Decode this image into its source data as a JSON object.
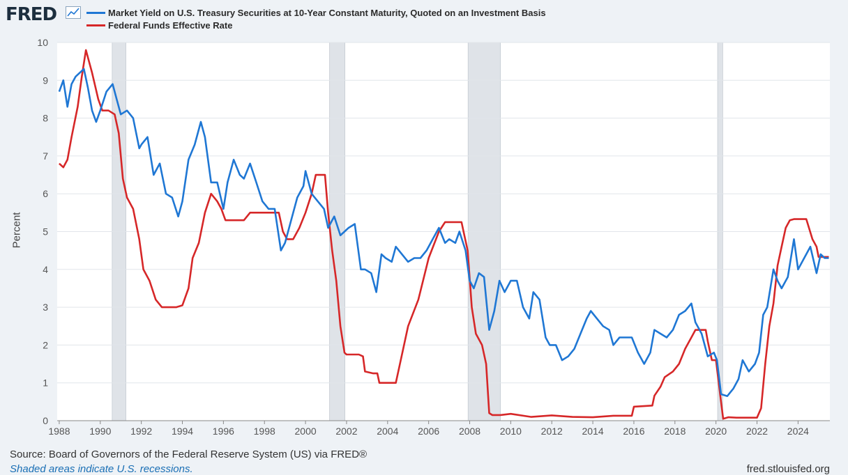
{
  "header": {
    "logo_text": "FRED",
    "series": [
      {
        "label": "Market Yield on U.S. Treasury Securities at 10-Year Constant Maturity, Quoted on an Investment Basis",
        "color": "#1f77d4"
      },
      {
        "label": "Federal Funds Effective Rate",
        "color": "#d62728"
      }
    ]
  },
  "footer": {
    "source": "Source: Board of Governors of the Federal Reserve System (US) via FRED®",
    "recession_note": "Shaded areas indicate U.S. recessions.",
    "site": "fred.stlouisfed.org"
  },
  "chart_data": {
    "type": "line",
    "title": "",
    "xlabel": "",
    "ylabel": "Percent",
    "xlim": [
      1987.9,
      2025.55
    ],
    "ylim": [
      0,
      10
    ],
    "y_ticks": [
      0,
      1,
      2,
      3,
      4,
      5,
      6,
      7,
      8,
      9,
      10
    ],
    "x_ticks": [
      1988,
      1990,
      1992,
      1994,
      1996,
      1998,
      2000,
      2002,
      2004,
      2006,
      2008,
      2010,
      2012,
      2014,
      2016,
      2018,
      2020,
      2022,
      2024
    ],
    "grid": true,
    "legend": "top-left",
    "recessions": [
      [
        1990.58,
        1991.25
      ],
      [
        2001.17,
        2001.92
      ],
      [
        2007.92,
        2009.5
      ],
      [
        2020.08,
        2020.33
      ]
    ],
    "series": [
      {
        "name": "Market Yield on U.S. Treasury Securities at 10-Year Constant Maturity, Quoted on an Investment Basis",
        "color": "#1f77d4",
        "x": [
          1988.0,
          1988.2,
          1988.4,
          1988.6,
          1988.8,
          1989.0,
          1989.2,
          1989.4,
          1989.6,
          1989.8,
          1990.0,
          1990.3,
          1990.6,
          1990.8,
          1991.0,
          1991.3,
          1991.6,
          1991.9,
          1992.0,
          1992.3,
          1992.6,
          1992.9,
          1993.2,
          1993.5,
          1993.8,
          1994.0,
          1994.3,
          1994.6,
          1994.9,
          1995.1,
          1995.4,
          1995.7,
          1996.0,
          1996.2,
          1996.5,
          1996.8,
          1997.0,
          1997.3,
          1997.6,
          1997.9,
          1998.2,
          1998.5,
          1998.8,
          1999.0,
          1999.3,
          1999.6,
          1999.9,
          2000.0,
          2000.3,
          2000.6,
          2000.9,
          2001.1,
          2001.4,
          2001.7,
          2001.9,
          2002.1,
          2002.4,
          2002.7,
          2002.9,
          2003.2,
          2003.45,
          2003.7,
          2003.9,
          2004.2,
          2004.4,
          2004.7,
          2005.0,
          2005.3,
          2005.6,
          2005.9,
          2006.2,
          2006.5,
          2006.8,
          2007.0,
          2007.3,
          2007.5,
          2007.8,
          2008.0,
          2008.2,
          2008.45,
          2008.7,
          2008.95,
          2009.2,
          2009.45,
          2009.7,
          2010.0,
          2010.3,
          2010.6,
          2010.9,
          2011.1,
          2011.4,
          2011.7,
          2011.9,
          2012.2,
          2012.5,
          2012.8,
          2013.1,
          2013.4,
          2013.7,
          2013.9,
          2014.2,
          2014.5,
          2014.8,
          2015.0,
          2015.3,
          2015.6,
          2015.9,
          2016.2,
          2016.5,
          2016.8,
          2017.0,
          2017.3,
          2017.6,
          2017.9,
          2018.2,
          2018.5,
          2018.8,
          2019.0,
          2019.3,
          2019.6,
          2019.9,
          2020.05,
          2020.25,
          2020.55,
          2020.85,
          2021.1,
          2021.3,
          2021.6,
          2021.9,
          2022.1,
          2022.3,
          2022.5,
          2022.8,
          2023.0,
          2023.2,
          2023.5,
          2023.8,
          2024.0,
          2024.3,
          2024.6,
          2024.9,
          2025.1,
          2025.3,
          2025.5
        ],
        "y": [
          8.7,
          9.0,
          8.3,
          8.9,
          9.1,
          9.2,
          9.3,
          8.8,
          8.2,
          7.9,
          8.2,
          8.7,
          8.9,
          8.5,
          8.1,
          8.2,
          8.0,
          7.2,
          7.3,
          7.5,
          6.5,
          6.8,
          6.0,
          5.9,
          5.4,
          5.8,
          6.9,
          7.3,
          7.9,
          7.5,
          6.3,
          6.3,
          5.6,
          6.3,
          6.9,
          6.5,
          6.4,
          6.8,
          6.3,
          5.8,
          5.6,
          5.6,
          4.5,
          4.7,
          5.3,
          5.9,
          6.2,
          6.6,
          6.0,
          5.8,
          5.6,
          5.1,
          5.4,
          4.9,
          5.0,
          5.1,
          5.2,
          4.0,
          4.0,
          3.9,
          3.4,
          4.4,
          4.3,
          4.2,
          4.6,
          4.4,
          4.2,
          4.3,
          4.3,
          4.5,
          4.8,
          5.1,
          4.7,
          4.8,
          4.7,
          5.0,
          4.5,
          3.7,
          3.5,
          3.9,
          3.8,
          2.4,
          2.9,
          3.7,
          3.4,
          3.7,
          3.7,
          3.0,
          2.7,
          3.4,
          3.2,
          2.2,
          2.0,
          2.0,
          1.6,
          1.7,
          1.9,
          2.3,
          2.7,
          2.9,
          2.7,
          2.5,
          2.4,
          2.0,
          2.2,
          2.2,
          2.2,
          1.8,
          1.5,
          1.8,
          2.4,
          2.3,
          2.2,
          2.4,
          2.8,
          2.9,
          3.1,
          2.6,
          2.3,
          1.7,
          1.8,
          1.6,
          0.7,
          0.65,
          0.85,
          1.1,
          1.6,
          1.3,
          1.5,
          1.8,
          2.8,
          3.0,
          4.0,
          3.7,
          3.5,
          3.8,
          4.8,
          4.0,
          4.3,
          4.6,
          3.9,
          4.4,
          4.3,
          4.3
        ]
      },
      {
        "name": "Federal Funds Effective Rate",
        "color": "#d62728",
        "x": [
          1988.0,
          1988.2,
          1988.4,
          1988.6,
          1988.9,
          1989.1,
          1989.3,
          1989.6,
          1989.9,
          1990.1,
          1990.4,
          1990.7,
          1990.9,
          1991.1,
          1991.3,
          1991.6,
          1991.9,
          1992.1,
          1992.4,
          1992.7,
          1993.0,
          1993.3,
          1993.7,
          1994.0,
          1994.3,
          1994.5,
          1994.8,
          1995.1,
          1995.4,
          1995.7,
          1995.9,
          1996.1,
          1996.4,
          1996.7,
          1997.0,
          1997.3,
          1997.7,
          1998.0,
          1998.3,
          1998.7,
          1998.9,
          1999.1,
          1999.4,
          1999.7,
          2000.0,
          2000.3,
          2000.5,
          2000.8,
          2000.95,
          2001.1,
          2001.3,
          2001.5,
          2001.7,
          2001.9,
          2002.0,
          2002.3,
          2002.6,
          2002.8,
          2002.9,
          2003.3,
          2003.5,
          2003.6,
          2004.0,
          2004.4,
          2004.6,
          2005.0,
          2005.5,
          2006.0,
          2006.5,
          2006.8,
          2007.0,
          2007.6,
          2007.7,
          2007.9,
          2008.1,
          2008.3,
          2008.6,
          2008.8,
          2008.95,
          2009.1,
          2009.5,
          2010.0,
          2011.0,
          2012.0,
          2013.0,
          2014.0,
          2015.0,
          2015.9,
          2016.0,
          2016.9,
          2017.0,
          2017.3,
          2017.5,
          2017.9,
          2018.2,
          2018.5,
          2018.8,
          2019.0,
          2019.5,
          2019.6,
          2019.8,
          2020.0,
          2020.2,
          2020.35,
          2020.6,
          2021.0,
          2021.5,
          2022.0,
          2022.2,
          2022.4,
          2022.6,
          2022.8,
          2023.0,
          2023.2,
          2023.4,
          2023.6,
          2023.8,
          2024.0,
          2024.4,
          2024.7,
          2024.9,
          2025.0,
          2025.5
        ],
        "y": [
          6.8,
          6.7,
          6.9,
          7.5,
          8.3,
          9.1,
          9.8,
          9.2,
          8.5,
          8.2,
          8.2,
          8.1,
          7.6,
          6.4,
          5.9,
          5.6,
          4.8,
          4.0,
          3.7,
          3.2,
          3.0,
          3.0,
          3.0,
          3.05,
          3.5,
          4.3,
          4.7,
          5.5,
          6.0,
          5.8,
          5.6,
          5.3,
          5.3,
          5.3,
          5.3,
          5.5,
          5.5,
          5.5,
          5.5,
          5.5,
          5.0,
          4.8,
          4.8,
          5.1,
          5.5,
          6.0,
          6.5,
          6.5,
          6.5,
          5.5,
          4.5,
          3.7,
          2.5,
          1.8,
          1.75,
          1.75,
          1.75,
          1.7,
          1.3,
          1.25,
          1.25,
          1.0,
          1.0,
          1.0,
          1.5,
          2.5,
          3.2,
          4.3,
          5.0,
          5.25,
          5.25,
          5.25,
          5.0,
          4.5,
          3.0,
          2.3,
          2.0,
          1.5,
          0.2,
          0.15,
          0.15,
          0.18,
          0.1,
          0.14,
          0.1,
          0.09,
          0.13,
          0.13,
          0.37,
          0.4,
          0.66,
          0.9,
          1.15,
          1.3,
          1.5,
          1.9,
          2.2,
          2.4,
          2.4,
          2.1,
          1.6,
          1.6,
          0.7,
          0.05,
          0.09,
          0.08,
          0.08,
          0.08,
          0.33,
          1.5,
          2.5,
          3.1,
          4.1,
          4.6,
          5.1,
          5.3,
          5.33,
          5.33,
          5.33,
          4.8,
          4.6,
          4.33,
          4.33
        ]
      }
    ]
  }
}
